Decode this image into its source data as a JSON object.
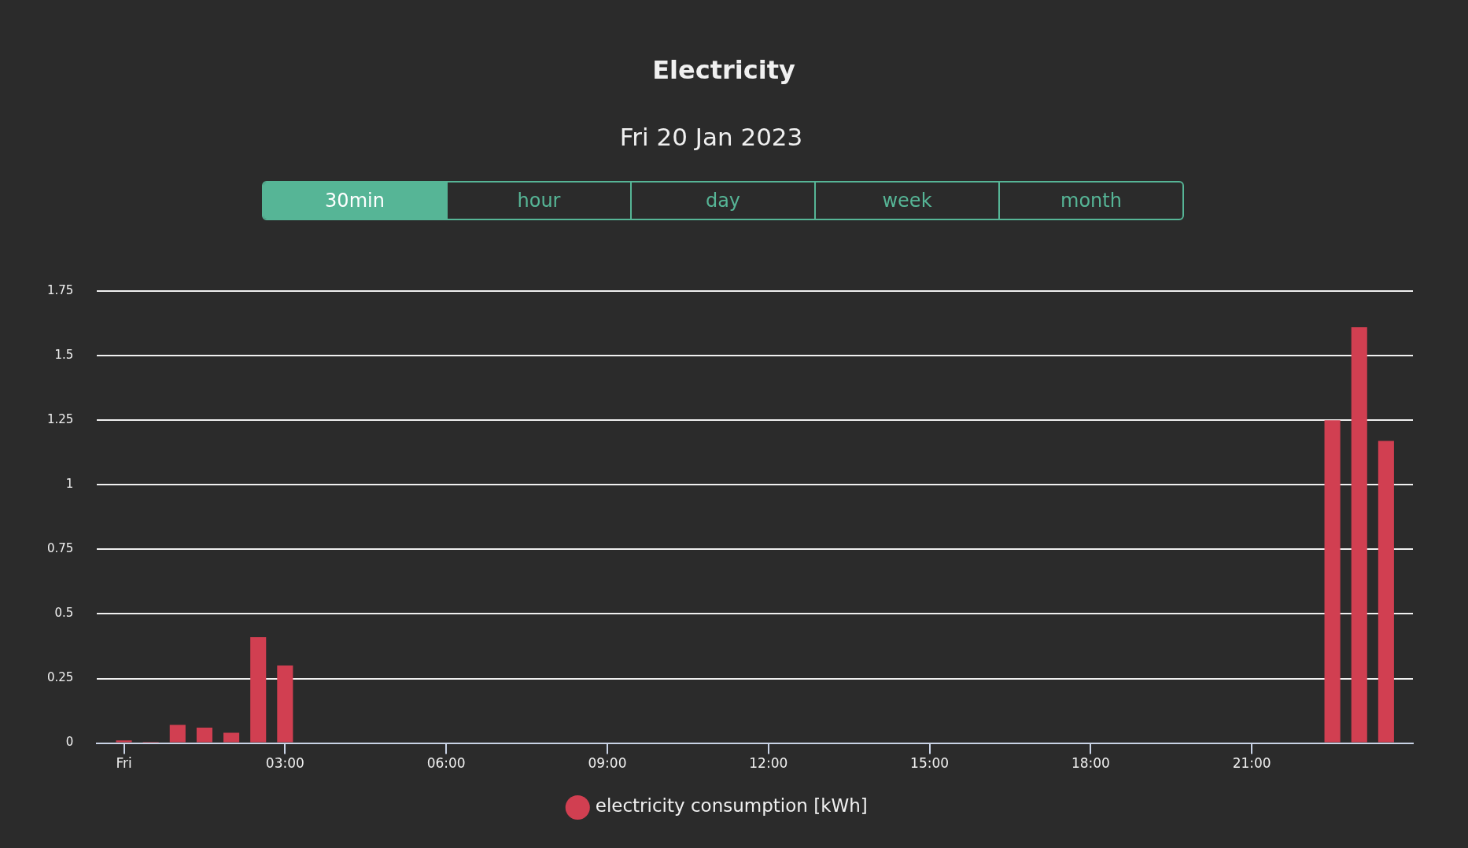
{
  "chart_data": {
    "type": "bar",
    "title": "Electricity",
    "subtitle": "Fri 20 Jan 2023",
    "annotations": [
      "30min",
      "hour",
      "day",
      "week",
      "month"
    ],
    "x": [
      0,
      0.5,
      1,
      1.5,
      2,
      2.5,
      3,
      22.5,
      23,
      23.5
    ],
    "series": [
      {
        "name": "electricity consumption [kWh]",
        "color": "#d13f51",
        "values": [
          0.01,
          0.005,
          0.07,
          0.06,
          0.04,
          0.41,
          0.3,
          1.25,
          1.61,
          1.17
        ]
      }
    ],
    "xlim": [
      -0.5,
      24
    ],
    "xticks": [
      {
        "value": 0,
        "label": "Fri"
      },
      {
        "value": 3,
        "label": "03:00"
      },
      {
        "value": 6,
        "label": "06:00"
      },
      {
        "value": 9,
        "label": "09:00"
      },
      {
        "value": 12,
        "label": "12:00"
      },
      {
        "value": 15,
        "label": "15:00"
      },
      {
        "value": 18,
        "label": "18:00"
      },
      {
        "value": 21,
        "label": "21:00"
      }
    ],
    "ylim": [
      0,
      1.75
    ],
    "yticks": [
      0,
      0.25,
      0.5,
      0.75,
      1,
      1.25,
      1.5,
      1.75
    ],
    "grid": "y",
    "legend": "bottom"
  }
}
